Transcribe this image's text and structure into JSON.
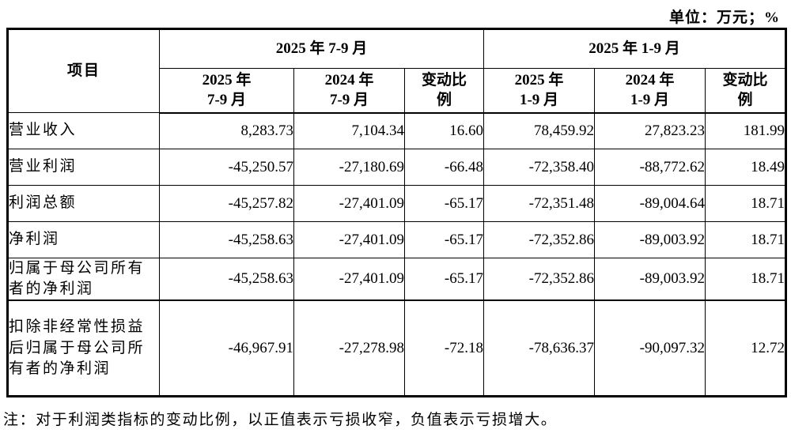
{
  "page": {
    "unit_label": "单位：万元；%",
    "note": "注：对于利润类指标的变动比例，以正值表示亏损收窄，负值表示亏损增大。"
  },
  "table": {
    "item_column_header": "项目",
    "column_groups": [
      {
        "label": "2025 年 7-9 月",
        "sub_columns": [
          {
            "line1": "2025 年",
            "line2": "7-9 月"
          },
          {
            "line1": "2024 年",
            "line2": "7-9 月"
          },
          {
            "line1": "变动比",
            "line2": "例"
          }
        ]
      },
      {
        "label": "2025 年 1-9 月",
        "sub_columns": [
          {
            "line1": "2025 年",
            "line2": "1-9 月"
          },
          {
            "line1": "2024 年",
            "line2": "1-9 月"
          },
          {
            "line1": "变动比",
            "line2": "例"
          }
        ]
      }
    ],
    "rows": [
      {
        "label": "营业收入",
        "values": [
          "8,283.73",
          "7,104.34",
          "16.60",
          "78,459.92",
          "27,823.23",
          "181.99"
        ]
      },
      {
        "label": "营业利润",
        "values": [
          "-45,250.57",
          "-27,180.69",
          "-66.48",
          "-72,358.40",
          "-88,772.62",
          "18.49"
        ]
      },
      {
        "label": "利润总额",
        "values": [
          "-45,257.82",
          "-27,401.09",
          "-65.17",
          "-72,351.48",
          "-89,004.64",
          "18.71"
        ]
      },
      {
        "label": "净利润",
        "values": [
          "-45,258.63",
          "-27,401.09",
          "-65.17",
          "-72,352.86",
          "-89,003.92",
          "18.71"
        ]
      },
      {
        "label": "归属于母公司所有者的净利润",
        "values": [
          "-45,258.63",
          "-27,401.09",
          "-65.17",
          "-72,352.86",
          "-89,003.92",
          "18.71"
        ]
      },
      {
        "label": "扣除非经常性损益后归属于母公司所有者的净利润",
        "values": [
          "-46,967.91",
          "-27,278.98",
          "-72.18",
          "-78,636.37",
          "-90,097.32",
          "12.72"
        ]
      }
    ]
  },
  "colors": {
    "text": "#000000",
    "border": "#000000",
    "background": "#ffffff"
  }
}
